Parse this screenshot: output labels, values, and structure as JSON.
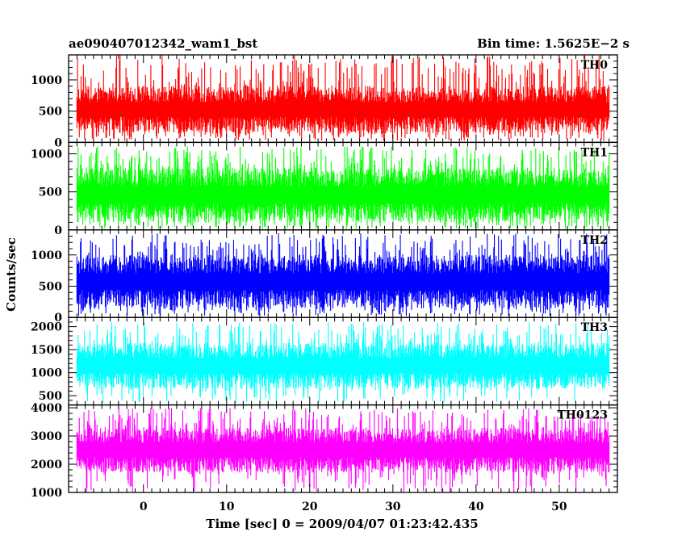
{
  "header": {
    "left_title": "ae090407012342_wam1_bst",
    "right_title": "Bin time: 1.5625E−2 s"
  },
  "chart_data": {
    "type": "line",
    "title": "ae090407012342_wam1_bst",
    "subtitle": "Bin time: 1.5625E−2 s",
    "xlabel": "Time [sec] 0 = 2009/04/07 01:23:42.435",
    "ylabel": "Counts/sec",
    "xlim": [
      -9,
      57
    ],
    "x_data_range": [
      -8,
      56
    ],
    "x_ticks": [
      0,
      10,
      20,
      30,
      40,
      50
    ],
    "x_tick_labels": [
      "0",
      "10",
      "20",
      "30",
      "40",
      "50"
    ],
    "bin_time": 0.015625,
    "panels": [
      {
        "name": "TH0",
        "color": "#ff0000",
        "ylim": [
          0,
          1400
        ],
        "y_ticks": [
          0,
          500,
          1000
        ],
        "y_tick_labels": [
          "0",
          "500",
          "1000"
        ],
        "typical_min": 150,
        "typical_max": 900,
        "peak_max": 1400,
        "floor_min": 20
      },
      {
        "name": "TH1",
        "color": "#00ff00",
        "ylim": [
          0,
          1150
        ],
        "y_ticks": [
          0,
          500,
          1000
        ],
        "y_tick_labels": [
          "0",
          "500",
          "1000"
        ],
        "typical_min": 100,
        "typical_max": 820,
        "peak_max": 1100,
        "floor_min": 10
      },
      {
        "name": "TH2",
        "color": "#0000ff",
        "ylim": [
          0,
          1400
        ],
        "y_ticks": [
          0,
          500,
          1000
        ],
        "y_tick_labels": [
          "0",
          "500",
          "1000"
        ],
        "typical_min": 150,
        "typical_max": 1000,
        "peak_max": 1350,
        "floor_min": 20
      },
      {
        "name": "TH3",
        "color": "#00ffff",
        "ylim": [
          300,
          2200
        ],
        "y_ticks": [
          500,
          1000,
          1500,
          2000
        ],
        "y_tick_labels": [
          "500",
          "1000",
          "1500",
          "2000"
        ],
        "typical_min": 650,
        "typical_max": 1650,
        "peak_max": 2100,
        "floor_min": 350
      },
      {
        "name": "TH0123",
        "color": "#ff00ff",
        "ylim": [
          1000,
          4100
        ],
        "y_ticks": [
          1000,
          2000,
          3000,
          4000
        ],
        "y_tick_labels": [
          "1000",
          "2000",
          "3000",
          "4000"
        ],
        "typical_min": 1700,
        "typical_max": 3300,
        "peak_max": 4000,
        "floor_min": 1000
      }
    ]
  }
}
